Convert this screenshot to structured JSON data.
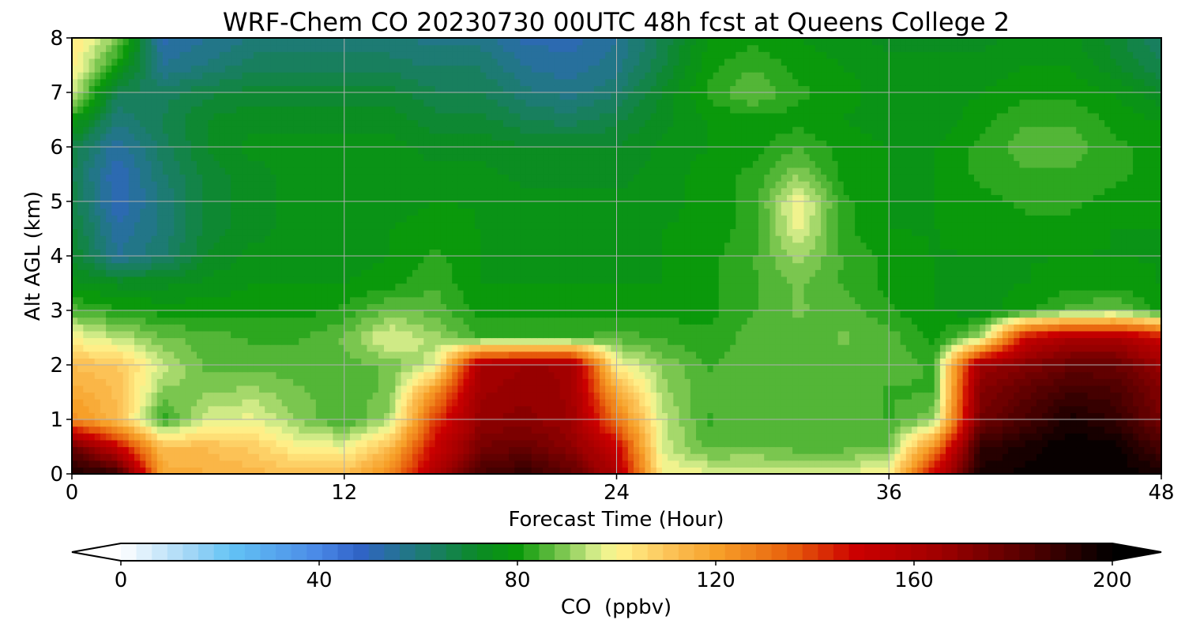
{
  "chart_data": {
    "type": "heatmap",
    "title": "WRF-Chem CO  20230730 00UTC 48h fcst at Queens College 2",
    "xlabel": "Forecast Time (Hour)",
    "ylabel": "Alt AGL (km)",
    "xlim": [
      0,
      48
    ],
    "ylim": [
      0,
      8
    ],
    "x_ticks": [
      0,
      12,
      24,
      36,
      48
    ],
    "y_ticks": [
      0,
      1,
      2,
      3,
      4,
      5,
      6,
      7,
      8
    ],
    "grid": true,
    "x": [
      0,
      2,
      4,
      6,
      8,
      10,
      12,
      14,
      16,
      18,
      20,
      22,
      24,
      26,
      28,
      30,
      32,
      34,
      36,
      38,
      40,
      42,
      44,
      46,
      48
    ],
    "y": [
      0,
      0.5,
      1,
      1.5,
      2,
      2.5,
      3,
      3.5,
      4,
      4.5,
      5,
      5.5,
      6,
      6.5,
      7,
      7.5,
      8
    ],
    "z": [
      [
        195,
        190,
        118,
        116,
        114,
        112,
        112,
        125,
        160,
        185,
        190,
        180,
        160,
        100,
        98,
        97,
        97,
        97,
        100,
        150,
        195,
        198,
        200,
        200,
        195
      ],
      [
        180,
        150,
        112,
        112,
        108,
        100,
        98,
        112,
        150,
        175,
        178,
        170,
        150,
        96,
        86,
        87,
        86,
        86,
        88,
        125,
        190,
        195,
        200,
        198,
        185
      ],
      [
        125,
        112,
        82,
        96,
        98,
        90,
        84,
        92,
        140,
        168,
        170,
        165,
        130,
        95,
        84,
        86,
        87,
        86,
        84,
        90,
        175,
        185,
        195,
        190,
        175
      ],
      [
        118,
        112,
        90,
        90,
        92,
        88,
        86,
        88,
        125,
        165,
        168,
        165,
        118,
        92,
        85,
        86,
        87,
        86,
        84,
        84,
        172,
        180,
        188,
        185,
        172
      ],
      [
        112,
        110,
        95,
        86,
        86,
        86,
        86,
        88,
        96,
        162,
        166,
        165,
        100,
        90,
        84,
        86,
        86,
        86,
        86,
        84,
        165,
        172,
        178,
        178,
        166
      ],
      [
        100,
        94,
        88,
        86,
        84,
        84,
        88,
        98,
        92,
        84,
        84,
        84,
        86,
        84,
        82,
        86,
        86,
        88,
        86,
        80,
        92,
        150,
        162,
        162,
        150
      ],
      [
        86,
        82,
        80,
        80,
        80,
        80,
        82,
        88,
        86,
        80,
        80,
        80,
        80,
        80,
        80,
        84,
        88,
        86,
        82,
        78,
        76,
        80,
        86,
        88,
        80
      ],
      [
        76,
        74,
        74,
        76,
        78,
        78,
        78,
        80,
        84,
        78,
        78,
        78,
        78,
        78,
        80,
        84,
        88,
        84,
        80,
        78,
        78,
        78,
        80,
        80,
        78
      ],
      [
        72,
        56,
        62,
        72,
        76,
        76,
        76,
        78,
        82,
        78,
        78,
        78,
        78,
        78,
        80,
        84,
        92,
        84,
        80,
        78,
        78,
        78,
        78,
        78,
        78
      ],
      [
        70,
        54,
        60,
        70,
        74,
        76,
        76,
        78,
        80,
        78,
        78,
        78,
        78,
        78,
        80,
        82,
        98,
        82,
        78,
        78,
        80,
        80,
        80,
        78,
        78
      ],
      [
        68,
        50,
        60,
        70,
        74,
        76,
        76,
        76,
        78,
        78,
        76,
        76,
        76,
        76,
        80,
        82,
        100,
        82,
        78,
        78,
        80,
        82,
        82,
        80,
        80
      ],
      [
        66,
        50,
        62,
        70,
        74,
        76,
        76,
        76,
        76,
        76,
        74,
        74,
        74,
        76,
        80,
        82,
        90,
        80,
        78,
        78,
        82,
        84,
        84,
        82,
        80
      ],
      [
        68,
        54,
        64,
        72,
        76,
        76,
        76,
        76,
        74,
        74,
        72,
        72,
        72,
        76,
        78,
        80,
        84,
        80,
        78,
        78,
        82,
        86,
        86,
        82,
        80
      ],
      [
        80,
        60,
        66,
        72,
        74,
        74,
        74,
        74,
        70,
        70,
        66,
        64,
        68,
        74,
        78,
        80,
        80,
        78,
        76,
        76,
        80,
        84,
        84,
        80,
        78
      ],
      [
        96,
        66,
        64,
        68,
        70,
        70,
        70,
        70,
        66,
        66,
        60,
        58,
        62,
        72,
        82,
        88,
        82,
        80,
        76,
        76,
        78,
        80,
        80,
        78,
        72
      ],
      [
        102,
        80,
        56,
        60,
        64,
        64,
        64,
        64,
        62,
        62,
        56,
        54,
        58,
        68,
        80,
        84,
        80,
        78,
        76,
        76,
        76,
        78,
        78,
        72,
        66
      ],
      [
        104,
        90,
        52,
        56,
        60,
        60,
        60,
        60,
        58,
        58,
        52,
        52,
        56,
        66,
        78,
        80,
        78,
        76,
        74,
        74,
        74,
        76,
        76,
        70,
        62
      ]
    ],
    "colorbar": {
      "label": "CO  (ppbv)",
      "min": 0,
      "max": 200,
      "ticks": [
        0,
        40,
        80,
        120,
        160,
        200
      ],
      "extend": "both",
      "levels": 64
    },
    "colors": {
      "0": "#ffffff",
      "15": "#9bd3f5",
      "22": "#63c4f5",
      "40": "#4a88e6",
      "48": "#3163c8",
      "60": "#1f7a7a",
      "72": "#0b8a26",
      "80": "#0a9a0a",
      "88": "#6cc046",
      "96": "#d8ee8c",
      "100": "#fff68f",
      "110": "#fcc55a",
      "120": "#f7a12a",
      "135": "#e8600c",
      "148": "#cc0000",
      "165": "#a00000",
      "185": "#4a0000",
      "200": "#000000"
    }
  }
}
